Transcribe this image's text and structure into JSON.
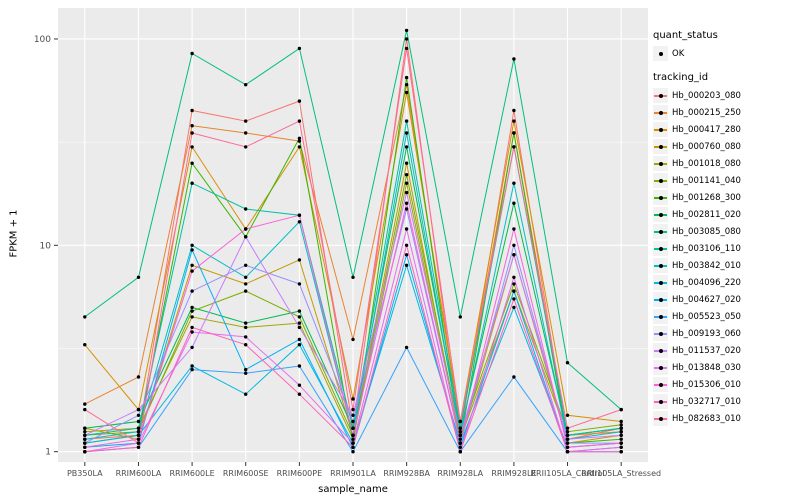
{
  "chart_data": {
    "type": "line",
    "title": "",
    "xlabel": "sample_name",
    "ylabel": "FPKM + 1",
    "y_scale": "log10",
    "y_ticks": [
      1,
      10,
      100
    ],
    "y_minor_ticks": [
      3.1623,
      31.623
    ],
    "ylim_log10": [
      -0.05,
      2.15
    ],
    "panel_bg": "#EBEBEB",
    "grid_color": "#FFFFFF",
    "point_color": "#000000",
    "tick_label_color": "#4D4D4D",
    "categories": [
      "PB350LA",
      "RRIM600LA",
      "RRIM600LE",
      "RRIM600SE",
      "RRIM600PE",
      "RRIM901LA",
      "RRIM928BA",
      "RRIM928LA",
      "RRIM928LE",
      "RRII105LA_Control",
      "RRII105LA_Stressed"
    ],
    "legend": {
      "quant_status": {
        "title": "quant_status",
        "items": [
          {
            "label": "OK"
          }
        ]
      },
      "tracking_id": {
        "title": "tracking_id"
      }
    },
    "series": [
      {
        "name": "Hb_000203_080",
        "color": "#F8766D",
        "values": [
          1.15,
          1.2,
          45,
          40,
          50,
          1.3,
          100,
          1.2,
          45,
          1.15,
          1.3
        ]
      },
      {
        "name": "Hb_000215_250",
        "color": "#EA8331",
        "values": [
          1.7,
          2.3,
          38,
          35,
          32,
          3.5,
          60,
          1.3,
          35,
          1.2,
          1.25
        ]
      },
      {
        "name": "Hb_000417_280",
        "color": "#D89000",
        "values": [
          3.3,
          1.6,
          30,
          12,
          30,
          1.8,
          55,
          1.4,
          40,
          1.5,
          1.4
        ]
      },
      {
        "name": "Hb_000760_080",
        "color": "#C09B00",
        "values": [
          1.3,
          1.15,
          8,
          6.5,
          8.5,
          1.2,
          25,
          1.1,
          9,
          1.1,
          1.2
        ]
      },
      {
        "name": "Hb_001018_080",
        "color": "#A3A500",
        "values": [
          1.25,
          1.3,
          4.5,
          4,
          4.2,
          1.15,
          20,
          1.15,
          6,
          1.2,
          1.3
        ]
      },
      {
        "name": "Hb_001141_040",
        "color": "#7CAE00",
        "values": [
          1.2,
          1.25,
          4.8,
          6,
          4.5,
          1.2,
          22,
          1.2,
          6.5,
          1.25,
          1.35
        ]
      },
      {
        "name": "Hb_001268_300",
        "color": "#39B600",
        "values": [
          1.1,
          1.2,
          25,
          11,
          33,
          1.1,
          65,
          1.1,
          35,
          1.1,
          1.15
        ]
      },
      {
        "name": "Hb_002811_020",
        "color": "#00BB4E",
        "values": [
          1.3,
          1.4,
          5,
          4.2,
          4.8,
          1.3,
          30,
          1.25,
          16,
          1.2,
          1.3
        ]
      },
      {
        "name": "Hb_003085_080",
        "color": "#00BF7D",
        "values": [
          4.5,
          7,
          85,
          60,
          90,
          7,
          110,
          4.5,
          80,
          2.7,
          1.6
        ]
      },
      {
        "name": "Hb_003106_110",
        "color": "#00C1A3",
        "values": [
          1.2,
          1.3,
          20,
          15,
          14,
          1.3,
          40,
          1.3,
          30,
          1.2,
          1.3
        ]
      },
      {
        "name": "Hb_003842_010",
        "color": "#00BFC4",
        "values": [
          1.15,
          1.25,
          10,
          7,
          13,
          1.2,
          35,
          1.2,
          20,
          1.15,
          1.25
        ]
      },
      {
        "name": "Hb_004096_220",
        "color": "#00BAE0",
        "values": [
          1.1,
          1.2,
          2.6,
          1.9,
          3.3,
          1.1,
          8,
          1.1,
          5,
          1.05,
          1.1
        ]
      },
      {
        "name": "Hb_004627_020",
        "color": "#00B0F6",
        "values": [
          1.05,
          1.1,
          9.5,
          2.5,
          3.5,
          1.05,
          9,
          1.05,
          6,
          1.0,
          1.05
        ]
      },
      {
        "name": "Hb_005523_050",
        "color": "#35A2FF",
        "values": [
          1.0,
          1.05,
          2.5,
          2.4,
          2.6,
          1.0,
          3.2,
          1.0,
          2.3,
          1.0,
          1.0
        ]
      },
      {
        "name": "Hb_009193_060",
        "color": "#9590FF",
        "values": [
          1.1,
          1.5,
          6,
          8,
          6.5,
          1.4,
          15,
          1.1,
          10,
          1.1,
          1.1
        ]
      },
      {
        "name": "Hb_011537_020",
        "color": "#C77CFF",
        "values": [
          1.2,
          1.6,
          3.2,
          11,
          4,
          1.5,
          18,
          1.2,
          9,
          1.15,
          1.2
        ]
      },
      {
        "name": "Hb_013848_030",
        "color": "#E76BF3",
        "values": [
          1.0,
          1.1,
          3.8,
          3.6,
          2.1,
          1.1,
          12,
          1.0,
          7,
          1.0,
          1.05
        ]
      },
      {
        "name": "Hb_015306_010",
        "color": "#FA62DB",
        "values": [
          1.05,
          1.15,
          7.5,
          12,
          14,
          1.2,
          16,
          1.1,
          12,
          1.05,
          1.1
        ]
      },
      {
        "name": "Hb_032717_010",
        "color": "#FF62BC",
        "values": [
          1.0,
          1.05,
          4,
          3.3,
          1.9,
          1.05,
          10,
          1.0,
          5.5,
          1.0,
          1.0
        ]
      },
      {
        "name": "Hb_082683_010",
        "color": "#FF6A98",
        "values": [
          1.6,
          1.1,
          35,
          30,
          40,
          1.6,
          90,
          1.4,
          30,
          1.3,
          1.6
        ]
      }
    ]
  }
}
